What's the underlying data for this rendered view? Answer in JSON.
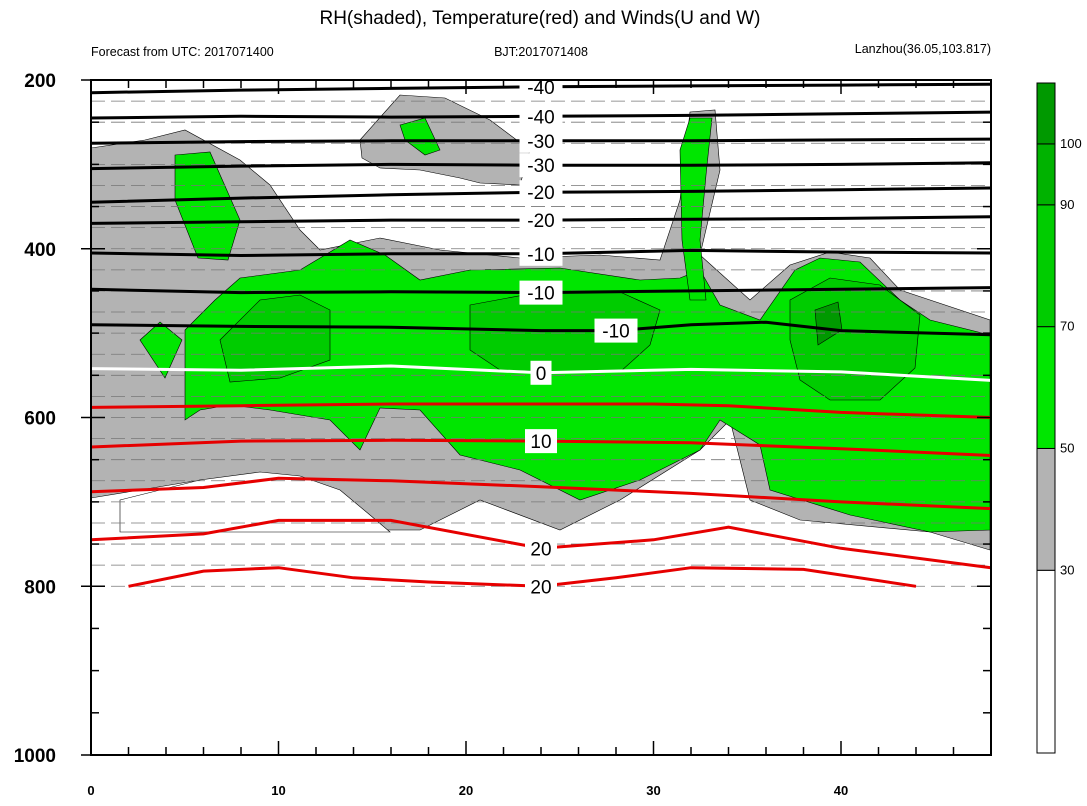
{
  "chart_data": {
    "type": "contour",
    "title": "RH(shaded), Temperature(red) and Winds(U and W)",
    "subtitle_left": "Forecast from UTC: 2017071400",
    "subtitle_center": "BJT:2017071408",
    "subtitle_right": "Lanzhou(36.05,103.817)",
    "x_ticks": [
      "0",
      "10",
      "20",
      "30",
      "40"
    ],
    "y_ticks": [
      "200",
      "400",
      "600",
      "800",
      "1000"
    ],
    "xlim": [
      0,
      48
    ],
    "ylim": [
      200,
      1000
    ],
    "colorbar": {
      "ticks": [
        "30",
        "50",
        "70",
        "90",
        "100"
      ],
      "levels": [
        0,
        30,
        50,
        70,
        90,
        100,
        110
      ],
      "colors": [
        "#ffffff",
        "#b3b3b3",
        "#00e600",
        "#00cc00",
        "#00b200",
        "#009900"
      ]
    },
    "temperature_contours": [
      {
        "value": -40,
        "label": "-40",
        "color": "#000000",
        "points": [
          [
            0,
            215
          ],
          [
            8,
            212
          ],
          [
            16,
            210
          ],
          [
            24,
            208
          ],
          [
            32,
            207
          ],
          [
            40,
            206
          ],
          [
            48,
            205
          ]
        ]
      },
      {
        "value": -40,
        "label": "-40",
        "color": "#000000",
        "points": [
          [
            0,
            245
          ],
          [
            8,
            243
          ],
          [
            16,
            244
          ],
          [
            24,
            243
          ],
          [
            32,
            242
          ],
          [
            40,
            240
          ],
          [
            48,
            238
          ]
        ]
      },
      {
        "value": -30,
        "label": "-30",
        "color": "#000000",
        "points": [
          [
            0,
            275
          ],
          [
            8,
            273
          ],
          [
            16,
            272
          ],
          [
            24,
            272
          ],
          [
            32,
            272
          ],
          [
            40,
            271
          ],
          [
            48,
            270
          ]
        ]
      },
      {
        "value": -30,
        "label": "-30",
        "color": "#000000",
        "points": [
          [
            0,
            305
          ],
          [
            8,
            302
          ],
          [
            16,
            300
          ],
          [
            24,
            301
          ],
          [
            32,
            301
          ],
          [
            40,
            300
          ],
          [
            48,
            298
          ]
        ]
      },
      {
        "value": -20,
        "label": "-20",
        "color": "#000000",
        "points": [
          [
            0,
            345
          ],
          [
            8,
            340
          ],
          [
            16,
            336
          ],
          [
            24,
            333
          ],
          [
            32,
            332
          ],
          [
            40,
            330
          ],
          [
            48,
            328
          ]
        ]
      },
      {
        "value": -20,
        "label": "-20",
        "color": "#000000",
        "points": [
          [
            0,
            370
          ],
          [
            8,
            368
          ],
          [
            16,
            366
          ],
          [
            24,
            366
          ],
          [
            32,
            365
          ],
          [
            40,
            364
          ],
          [
            48,
            362
          ]
        ]
      },
      {
        "value": -10,
        "label": "-10",
        "color": "#000000",
        "points": [
          [
            0,
            405
          ],
          [
            8,
            408
          ],
          [
            16,
            406
          ],
          [
            24,
            406
          ],
          [
            32,
            402
          ],
          [
            40,
            404
          ],
          [
            48,
            405
          ]
        ]
      },
      {
        "value": -10,
        "label": "-10",
        "color": "#000000",
        "points": [
          [
            0,
            448
          ],
          [
            8,
            452
          ],
          [
            16,
            451
          ],
          [
            24,
            452
          ],
          [
            32,
            450
          ],
          [
            40,
            448
          ],
          [
            48,
            446
          ]
        ]
      },
      {
        "value": -10,
        "label": "-10",
        "color": "#000000",
        "points": [
          [
            0,
            490
          ],
          [
            8,
            492
          ],
          [
            16,
            493
          ],
          [
            24,
            497
          ],
          [
            28,
            497
          ],
          [
            32,
            490
          ],
          [
            36,
            487
          ],
          [
            40,
            497
          ],
          [
            48,
            502
          ]
        ]
      },
      {
        "value": 0,
        "label": "0",
        "color": "#ffffff",
        "points": [
          [
            0,
            542
          ],
          [
            8,
            544
          ],
          [
            16,
            539
          ],
          [
            24,
            547
          ],
          [
            32,
            543
          ],
          [
            40,
            546
          ],
          [
            48,
            556
          ]
        ]
      },
      {
        "value": 0,
        "label": "",
        "color": "#e60000",
        "points": [
          [
            0,
            588
          ],
          [
            8,
            586
          ],
          [
            16,
            584
          ],
          [
            24,
            584
          ],
          [
            30,
            584
          ],
          [
            34,
            586
          ],
          [
            40,
            594
          ],
          [
            48,
            600
          ]
        ]
      },
      {
        "value": 10,
        "label": "10",
        "color": "#e60000",
        "points": [
          [
            0,
            635
          ],
          [
            8,
            628
          ],
          [
            16,
            627
          ],
          [
            24,
            628
          ],
          [
            32,
            630
          ],
          [
            40,
            637
          ],
          [
            48,
            645
          ]
        ]
      },
      {
        "value": 10,
        "label": "",
        "color": "#e60000",
        "points": [
          [
            0,
            688
          ],
          [
            6,
            683
          ],
          [
            10,
            672
          ],
          [
            16,
            675
          ],
          [
            24,
            682
          ],
          [
            32,
            690
          ],
          [
            40,
            700
          ],
          [
            48,
            708
          ]
        ]
      },
      {
        "value": 20,
        "label": "20",
        "color": "#e60000",
        "points": [
          [
            0,
            745
          ],
          [
            6,
            738
          ],
          [
            10,
            722
          ],
          [
            16,
            722
          ],
          [
            24,
            755
          ],
          [
            30,
            745
          ],
          [
            34,
            730
          ],
          [
            40,
            755
          ],
          [
            48,
            778
          ]
        ]
      },
      {
        "value": 20,
        "label": "20",
        "color": "#e60000",
        "points": [
          [
            2,
            800
          ],
          [
            6,
            782
          ],
          [
            10,
            778
          ],
          [
            14,
            790
          ],
          [
            18,
            795
          ],
          [
            24,
            800
          ],
          [
            28,
            790
          ],
          [
            32,
            778
          ],
          [
            38,
            780
          ],
          [
            44,
            800
          ]
        ]
      }
    ]
  }
}
